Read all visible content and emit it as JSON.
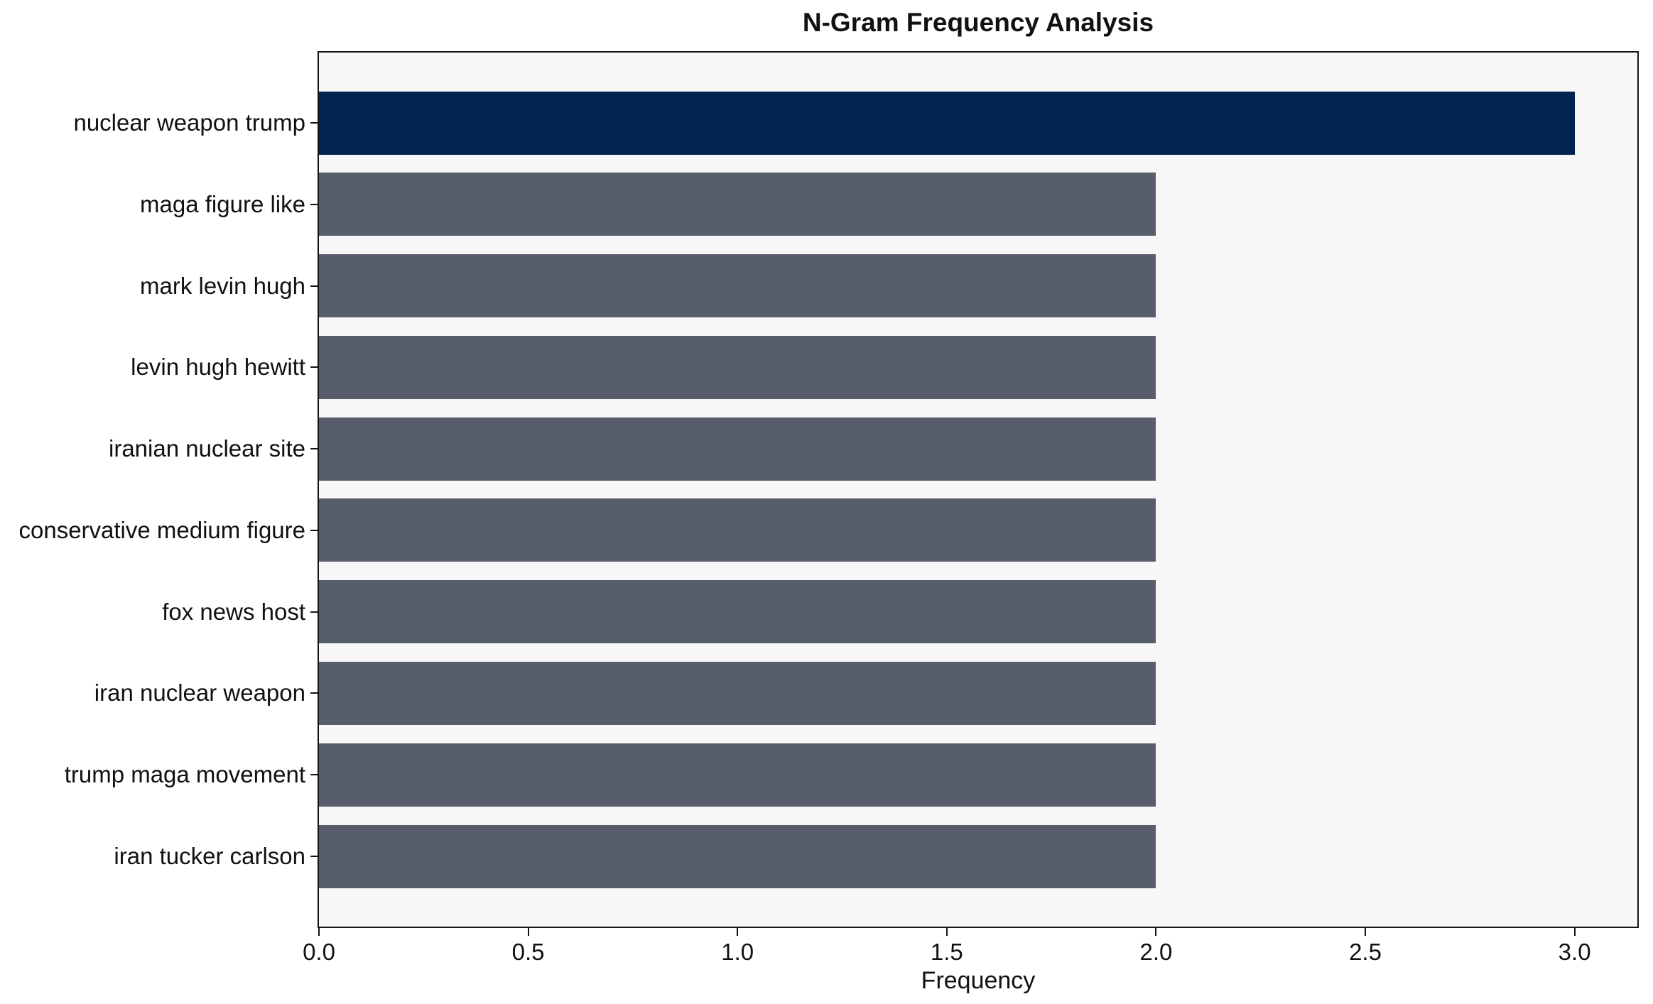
{
  "chart_data": {
    "type": "bar",
    "orientation": "horizontal",
    "title": "N-Gram Frequency Analysis",
    "xlabel": "Frequency",
    "ylabel": "",
    "categories": [
      "nuclear weapon trump",
      "maga figure like",
      "mark levin hugh",
      "levin hugh hewitt",
      "iranian nuclear site",
      "conservative medium figure",
      "fox news host",
      "iran nuclear weapon",
      "trump maga movement",
      "iran tucker carlson"
    ],
    "values": [
      3,
      2,
      2,
      2,
      2,
      2,
      2,
      2,
      2,
      2
    ],
    "bar_colors": [
      "#012350",
      "#575d6b",
      "#575d6b",
      "#575d6b",
      "#575d6b",
      "#575d6b",
      "#575d6b",
      "#575d6b",
      "#575d6b",
      "#575d6b"
    ],
    "xlim": [
      0,
      3.15
    ],
    "xticks": [
      0,
      0.5,
      1,
      1.5,
      2,
      2.5,
      3
    ],
    "xtick_labels": [
      "0.0",
      "0.5",
      "1.0",
      "1.5",
      "2.0",
      "2.5",
      "3.0"
    ],
    "grid": false,
    "legend": null,
    "colors": {
      "highlight_bar": "#012350",
      "default_bar": "#575d6b",
      "plot_background": "#f7f7f8",
      "page_background": "#ffffff",
      "axis": "#141414",
      "text": "#111111"
    }
  }
}
